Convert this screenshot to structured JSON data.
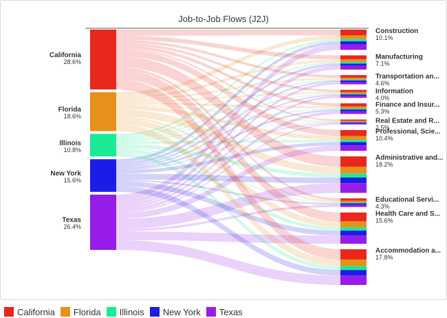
{
  "chart_data": {
    "type": "sankey",
    "title": "Job-to-Job Flows (J2J)",
    "sources": [
      {
        "name": "California",
        "pct": "28.6%",
        "value": 28.6,
        "color": "#e8281c"
      },
      {
        "name": "Florida",
        "pct": "18.6%",
        "value": 18.6,
        "color": "#e8901c"
      },
      {
        "name": "Illinois",
        "pct": "10.8%",
        "value": 10.8,
        "color": "#1ce896"
      },
      {
        "name": "New York",
        "pct": "15.6%",
        "value": 15.6,
        "color": "#1c1ce8"
      },
      {
        "name": "Texas",
        "pct": "26.4%",
        "value": 26.4,
        "color": "#961ce8"
      }
    ],
    "targets": [
      {
        "name": "Construction",
        "pct": "10.1%",
        "value": 10.1
      },
      {
        "name": "Manufacturing",
        "pct": "7.1%",
        "value": 7.1
      },
      {
        "name": "Transportation an...",
        "pct": "4.6%",
        "value": 4.6
      },
      {
        "name": "Information",
        "pct": "4.0%",
        "value": 4.0
      },
      {
        "name": "Finance and Insur...",
        "pct": "5.3%",
        "value": 5.3
      },
      {
        "name": "Real Estate and R...",
        "pct": "2.5%",
        "value": 2.5
      },
      {
        "name": "Professional, Scie...",
        "pct": "10.4%",
        "value": 10.4
      },
      {
        "name": "Administrative and...",
        "pct": "18.2%",
        "value": 18.2
      },
      {
        "name": "Educational Servi...",
        "pct": "4.3%",
        "value": 4.3
      },
      {
        "name": "Health Care and S...",
        "pct": "15.6%",
        "value": 15.6
      },
      {
        "name": "Accommodation a...",
        "pct": "17.8%",
        "value": 17.8
      }
    ],
    "legend_position": "bottom-left"
  }
}
